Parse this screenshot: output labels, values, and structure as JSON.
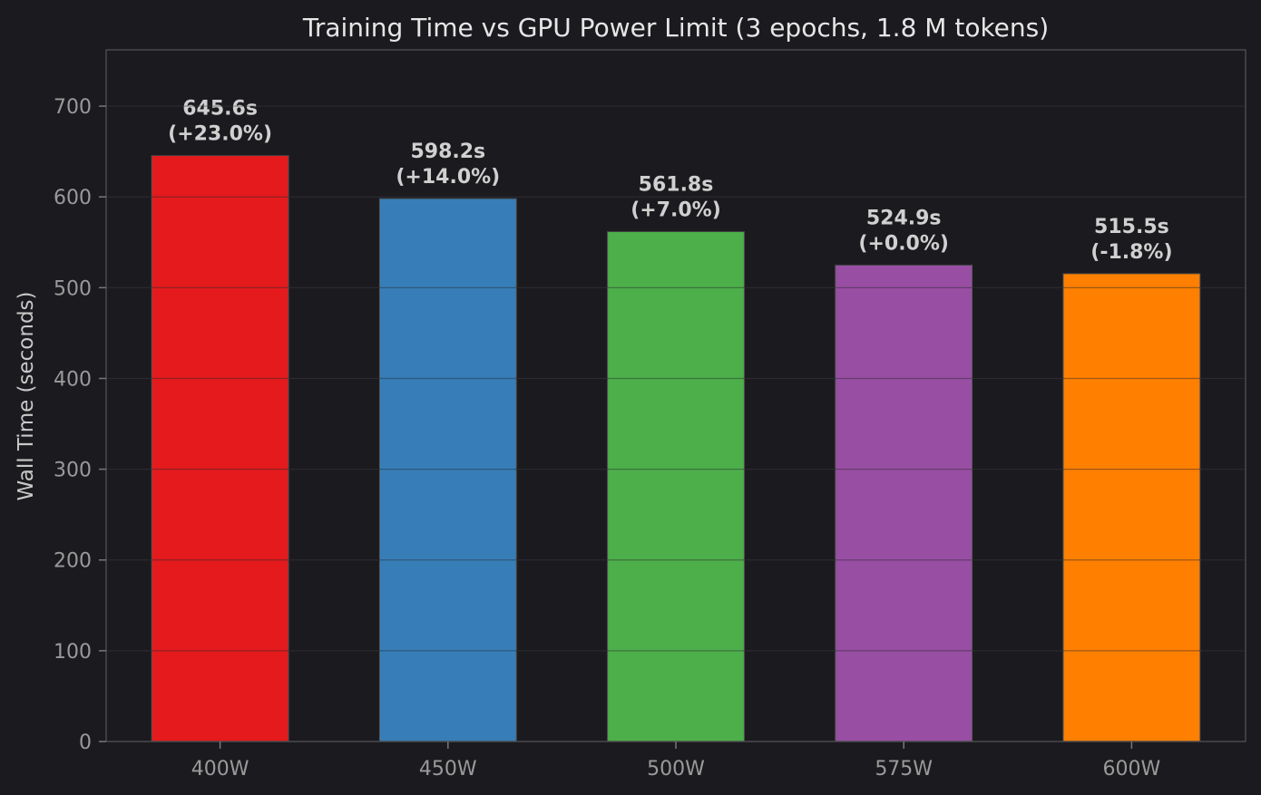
{
  "chart_data": {
    "type": "bar",
    "title": "Training Time vs GPU Power Limit (3 epochs, 1.8 M tokens)",
    "xlabel": "",
    "ylabel": "Wall Time (seconds)",
    "ylim": [
      0,
      762
    ],
    "yticks": [
      "0",
      "100",
      "200",
      "300",
      "400",
      "500",
      "600",
      "700"
    ],
    "ytick_values": [
      0,
      100,
      200,
      300,
      400,
      500,
      600,
      700
    ],
    "grid": true,
    "categories": [
      "400W",
      "450W",
      "500W",
      "575W",
      "600W"
    ],
    "values": [
      645.6,
      598.2,
      561.8,
      524.9,
      515.5
    ],
    "value_labels": [
      "645.6s",
      "598.2s",
      "561.8s",
      "524.9s",
      "515.5s"
    ],
    "delta_labels": [
      "(+23.0%)",
      "(+14.0%)",
      "(+7.0%)",
      "(+0.0%)",
      "(-1.8%)"
    ],
    "colors": [
      "#e41a1c",
      "#377eb8",
      "#4daf4a",
      "#984ea3",
      "#ff7f00"
    ]
  }
}
